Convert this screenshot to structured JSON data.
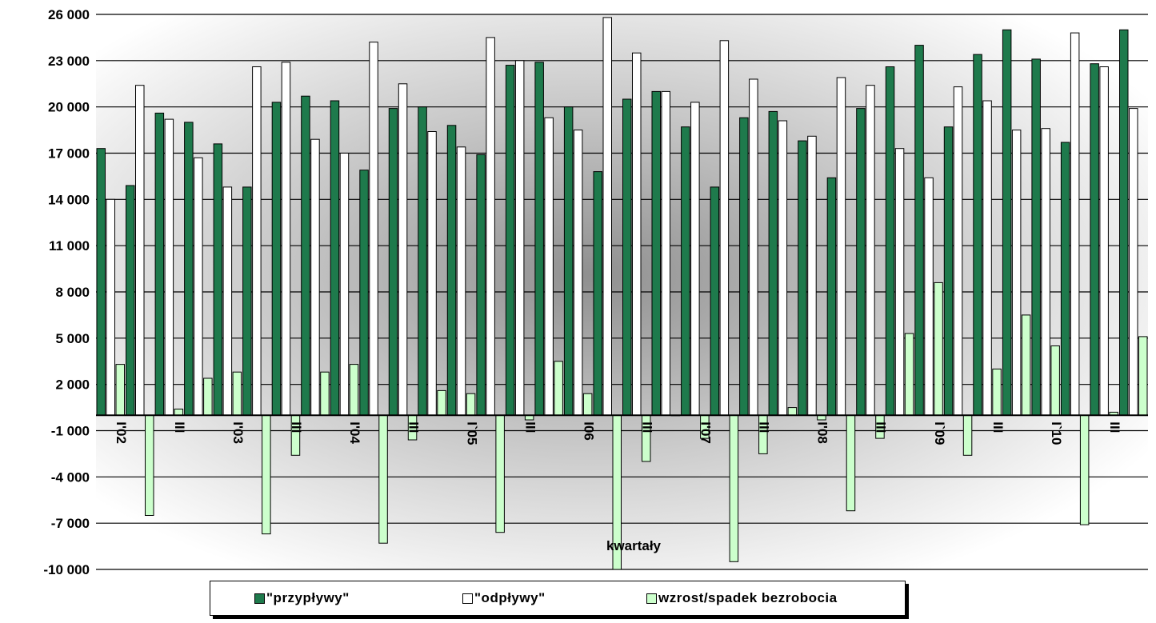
{
  "chart_data": {
    "type": "bar",
    "xlabel": "kwartały",
    "ylim": [
      -10000,
      26000
    ],
    "yticks": [
      26000,
      23000,
      20000,
      17000,
      14000,
      11000,
      8000,
      5000,
      2000,
      -1000,
      -4000,
      -7000,
      -10000
    ],
    "ytick_labels": [
      "26 000",
      "23 000",
      "20 000",
      "17 000",
      "14 000",
      "11 000",
      "8 000",
      "5 000",
      "2 000",
      "-1 000",
      "-4 000",
      "-7 000",
      "-10 000"
    ],
    "category_labels": [
      {
        "index": 0,
        "text": "I'02"
      },
      {
        "index": 2,
        "text": "III"
      },
      {
        "index": 4,
        "text": "I'03"
      },
      {
        "index": 6,
        "text": "III"
      },
      {
        "index": 8,
        "text": "I'04"
      },
      {
        "index": 10,
        "text": "III"
      },
      {
        "index": 12,
        "text": "I`05"
      },
      {
        "index": 14,
        "text": "III"
      },
      {
        "index": 16,
        "text": "I06"
      },
      {
        "index": 18,
        "text": "III"
      },
      {
        "index": 20,
        "text": "I'07"
      },
      {
        "index": 22,
        "text": "III"
      },
      {
        "index": 24,
        "text": "I'08"
      },
      {
        "index": 26,
        "text": "III"
      },
      {
        "index": 28,
        "text": "I`09"
      },
      {
        "index": 30,
        "text": "III"
      },
      {
        "index": 32,
        "text": "I`10"
      },
      {
        "index": 34,
        "text": "III"
      }
    ],
    "series": [
      {
        "name": "\"przypływy\"",
        "color": "#1e7a4c",
        "values": [
          17300,
          14900,
          19600,
          19000,
          17600,
          14800,
          20300,
          20700,
          20400,
          15900,
          19900,
          20000,
          18800,
          16900,
          22700,
          22900,
          20000,
          15800,
          20500,
          21000,
          18700,
          14800,
          19300,
          19700,
          17800,
          15400,
          19900,
          22600,
          24000,
          18700,
          23400,
          25000,
          23100,
          17700,
          22800,
          25000
        ]
      },
      {
        "name": "\"odpływy\"",
        "color": "#ffffff",
        "values": [
          14000,
          21400,
          19200,
          16700,
          14800,
          22600,
          22900,
          17900,
          17000,
          24200,
          21500,
          18400,
          17400,
          24500,
          23000,
          19300,
          18500,
          25800,
          23500,
          21000,
          20300,
          24300,
          21800,
          19100,
          18100,
          21900,
          21400,
          17300,
          15400,
          21300,
          20400,
          18500,
          18600,
          24800,
          22600,
          19900
        ]
      },
      {
        "name": "wzrost/spadek bezrobocia",
        "color": "#ccffcc",
        "values": [
          3300,
          -6500,
          400,
          2400,
          2800,
          -7700,
          -2600,
          2800,
          3300,
          -8300,
          -1600,
          1600,
          1400,
          -7600,
          -300,
          3500,
          1400,
          -10000,
          -3000,
          0,
          -1500,
          -9500,
          -2500,
          500,
          -300,
          -6200,
          -1500,
          5300,
          8600,
          -2600,
          3000,
          6500,
          4500,
          -7100,
          200,
          5100
        ]
      }
    ]
  }
}
